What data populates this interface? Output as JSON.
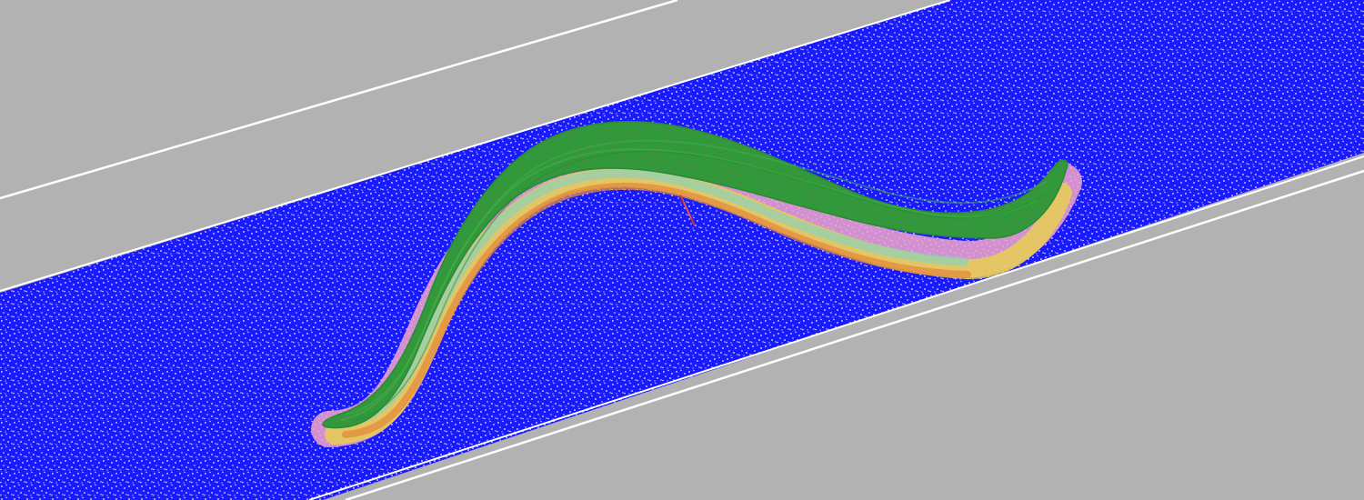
{
  "scene": {
    "background_color": "#b2b2b2",
    "channel_color": "#1a1aff",
    "particle_color": "#ffffff",
    "boundary_line_color": "#ffffff",
    "worm_body_color": "#2f9a3a",
    "worm_stripe_colors": [
      "#f2a6c8",
      "#e9d24a",
      "#7fd3c4",
      "#e48a3a",
      "#c94a9a"
    ],
    "worm_marker_color": "#d03030"
  }
}
